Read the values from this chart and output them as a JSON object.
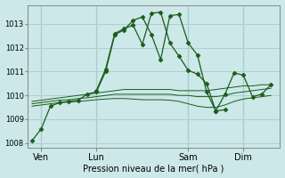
{
  "background_color": "#cce8e8",
  "grid_color": "#aad0d0",
  "line_color": "#1a5c1a",
  "xlabel": "Pression niveau de la mer( hPa )",
  "ylim": [
    1007.8,
    1013.8
  ],
  "yticks": [
    1008,
    1009,
    1010,
    1011,
    1012,
    1013
  ],
  "xtick_labels": [
    "Ven",
    "Lun",
    "Sam",
    "Dim"
  ],
  "xtick_positions": [
    1,
    7,
    17,
    23
  ],
  "xlim": [
    -0.5,
    27
  ],
  "vlines": [
    1,
    7,
    17,
    23
  ],
  "line1_x": [
    0,
    1,
    2,
    3,
    4,
    5,
    6,
    7,
    8,
    9,
    10,
    11,
    12,
    13,
    14,
    15,
    16,
    17,
    18,
    19,
    20,
    21
  ],
  "line1_y": [
    1008.1,
    1008.6,
    1009.55,
    1009.7,
    1009.75,
    1009.8,
    1010.05,
    1010.15,
    1011.0,
    1012.55,
    1012.75,
    1013.15,
    1013.3,
    1012.55,
    1011.5,
    1013.35,
    1013.4,
    1012.2,
    1011.7,
    1010.15,
    1009.35,
    1009.4
  ],
  "line2_x": [
    7,
    8,
    9,
    10,
    11,
    12,
    13,
    14,
    15,
    16,
    17,
    18,
    19,
    20,
    21,
    22,
    23,
    24,
    25,
    26
  ],
  "line2_y": [
    1010.2,
    1011.1,
    1012.6,
    1012.8,
    1012.95,
    1012.15,
    1013.45,
    1013.5,
    1012.2,
    1011.65,
    1011.05,
    1010.9,
    1010.5,
    1009.35,
    1010.05,
    1010.95,
    1010.85,
    1009.95,
    1010.05,
    1010.45
  ],
  "flat1_x": [
    0,
    1,
    2,
    3,
    4,
    5,
    6,
    7,
    8,
    9,
    10,
    11,
    12,
    13,
    14,
    15,
    16,
    17,
    18,
    19,
    20,
    21,
    22,
    23,
    24,
    25,
    26
  ],
  "flat1_y": [
    1009.75,
    1009.8,
    1009.85,
    1009.9,
    1009.95,
    1010.0,
    1010.05,
    1010.1,
    1010.15,
    1010.2,
    1010.25,
    1010.25,
    1010.25,
    1010.25,
    1010.25,
    1010.25,
    1010.2,
    1010.2,
    1010.2,
    1010.2,
    1010.25,
    1010.3,
    1010.35,
    1010.4,
    1010.4,
    1010.45,
    1010.45
  ],
  "flat2_x": [
    0,
    1,
    2,
    3,
    4,
    5,
    6,
    7,
    8,
    9,
    10,
    11,
    12,
    13,
    14,
    15,
    16,
    17,
    18,
    19,
    20,
    21,
    22,
    23,
    24,
    25,
    26
  ],
  "flat2_y": [
    1009.65,
    1009.7,
    1009.75,
    1009.8,
    1009.82,
    1009.87,
    1009.9,
    1009.95,
    1010.0,
    1010.05,
    1010.05,
    1010.05,
    1010.05,
    1010.05,
    1010.05,
    1010.05,
    1010.0,
    1010.0,
    1009.95,
    1009.95,
    1009.95,
    1010.0,
    1010.1,
    1010.15,
    1010.2,
    1010.25,
    1010.3
  ],
  "flat3_x": [
    0,
    1,
    2,
    3,
    4,
    5,
    6,
    7,
    8,
    9,
    10,
    11,
    12,
    13,
    14,
    15,
    16,
    17,
    18,
    19,
    20,
    21,
    22,
    23,
    24,
    25,
    26
  ],
  "flat3_y": [
    1009.55,
    1009.6,
    1009.65,
    1009.7,
    1009.72,
    1009.75,
    1009.78,
    1009.82,
    1009.85,
    1009.87,
    1009.87,
    1009.85,
    1009.82,
    1009.82,
    1009.82,
    1009.8,
    1009.75,
    1009.65,
    1009.55,
    1009.5,
    1009.5,
    1009.6,
    1009.75,
    1009.85,
    1009.9,
    1009.95,
    1010.0
  ],
  "marker": "D",
  "markersize": 2.5
}
